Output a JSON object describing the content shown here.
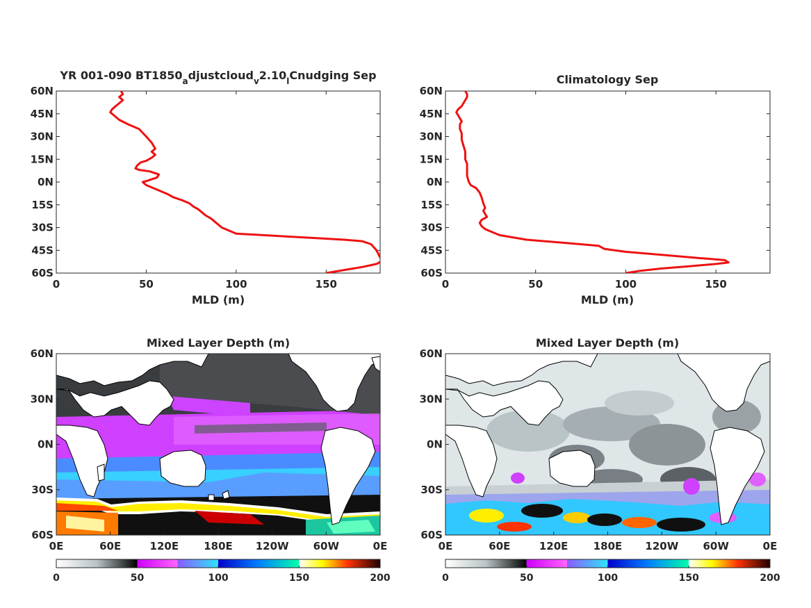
{
  "figure": {
    "title_left_parts": [
      "YR 001-090 BT1850",
      "a",
      "djustcloud",
      "v",
      "2.10",
      "l",
      "Cnudging Sep"
    ],
    "title_right": "Climatology Sep"
  },
  "colors": {
    "line": "#ee1111",
    "axis": "#262626",
    "land": "#ffffff",
    "coast": "#000000"
  },
  "chart_data": [
    {
      "type": "line",
      "title": "YR 001-090 BT1850_adjustcloud_v2.10_lCnudging Sep",
      "xlabel": "MLD (m)",
      "ylabel": "",
      "xlim": [
        0,
        180
      ],
      "ylim": [
        -60,
        60
      ],
      "xticks": [
        0,
        50,
        100,
        150
      ],
      "yticks": [
        -60,
        -45,
        -30,
        -15,
        0,
        15,
        30,
        45,
        60
      ],
      "ytick_labels": [
        "60S",
        "45S",
        "30S",
        "15S",
        "0N",
        "15N",
        "30N",
        "45N",
        "60N"
      ],
      "grid": false,
      "series": [
        {
          "x": [
            36,
            37,
            35,
            37,
            35,
            33,
            31,
            30,
            32,
            35,
            40,
            46,
            50,
            53,
            55,
            53,
            55,
            53,
            50,
            47,
            45,
            44,
            46,
            52,
            57,
            56,
            51,
            48,
            50,
            54,
            58,
            62,
            65,
            70,
            74,
            76,
            79,
            81,
            83,
            86,
            88,
            92,
            100,
            115,
            130,
            145,
            160,
            170,
            175,
            178,
            181,
            178,
            170,
            160,
            150
          ],
          "y": [
            60,
            58,
            56,
            54,
            52,
            50,
            48,
            46,
            44,
            41,
            38,
            35,
            30,
            26,
            22,
            20,
            18,
            16,
            14,
            13,
            11,
            9,
            8,
            7,
            5,
            3,
            1,
            0,
            -2,
            -4,
            -6,
            -8,
            -10,
            -12,
            -14,
            -16,
            -18,
            -20,
            -22,
            -24,
            -26,
            -30,
            -34,
            -35,
            -36,
            -37,
            -38,
            -39,
            -41,
            -45,
            -52,
            -54,
            -56,
            -58,
            -60
          ]
        }
      ]
    },
    {
      "type": "line",
      "title": "Climatology Sep",
      "xlabel": "MLD (m)",
      "ylabel": "",
      "xlim": [
        0,
        180
      ],
      "ylim": [
        -60,
        60
      ],
      "xticks": [
        0,
        50,
        100,
        150
      ],
      "yticks": [
        -60,
        -45,
        -30,
        -15,
        0,
        15,
        30,
        45,
        60
      ],
      "ytick_labels": [
        "60S",
        "45S",
        "30S",
        "15S",
        "0N",
        "15N",
        "30N",
        "45N",
        "60N"
      ],
      "grid": false,
      "series": [
        {
          "x": [
            11,
            12,
            12,
            11,
            10,
            9,
            7,
            6,
            7,
            8,
            9,
            8,
            8,
            9,
            9,
            10,
            11,
            11,
            12,
            12,
            12,
            13,
            14,
            17,
            19,
            20,
            21,
            22,
            21,
            22,
            23,
            20,
            19,
            20,
            22,
            30,
            45,
            65,
            85,
            88,
            100,
            120,
            140,
            155,
            157,
            150,
            135,
            120,
            108,
            100
          ],
          "y": [
            60,
            58,
            56,
            54,
            52,
            50,
            48,
            46,
            44,
            42,
            40,
            38,
            35,
            32,
            28,
            24,
            20,
            15,
            12,
            8,
            4,
            0,
            -2,
            -4,
            -7,
            -10,
            -14,
            -17,
            -19,
            -21,
            -23,
            -25,
            -27,
            -29,
            -31,
            -35,
            -38,
            -40,
            -42,
            -44,
            -46,
            -48,
            -50,
            -51.5,
            -53,
            -54,
            -55.5,
            -57,
            -58.5,
            -60
          ]
        }
      ]
    },
    {
      "type": "heatmap",
      "title": "Mixed Layer Depth (m)",
      "xticks_labels": [
        "0E",
        "60E",
        "120E",
        "180E",
        "120W",
        "60W",
        "0E"
      ],
      "yticks_labels": [
        "60S",
        "30S",
        "0N",
        "30N",
        "60N"
      ],
      "xlim": [
        0,
        360
      ],
      "ylim": [
        -60,
        60
      ],
      "colorbar": {
        "min": 0,
        "max": 200,
        "ticks": [
          0,
          50,
          100,
          150,
          200
        ]
      }
    },
    {
      "type": "heatmap",
      "title": "Mixed Layer Depth (m)",
      "xticks_labels": [
        "0E",
        "60E",
        "120E",
        "180E",
        "120W",
        "60W",
        "0E"
      ],
      "yticks_labels": [
        "60S",
        "30S",
        "0N",
        "30N",
        "60N"
      ],
      "xlim": [
        0,
        360
      ],
      "ylim": [
        -60,
        60
      ],
      "colorbar": {
        "min": 0,
        "max": 200,
        "ticks": [
          0,
          50,
          100,
          150,
          200
        ]
      }
    }
  ]
}
